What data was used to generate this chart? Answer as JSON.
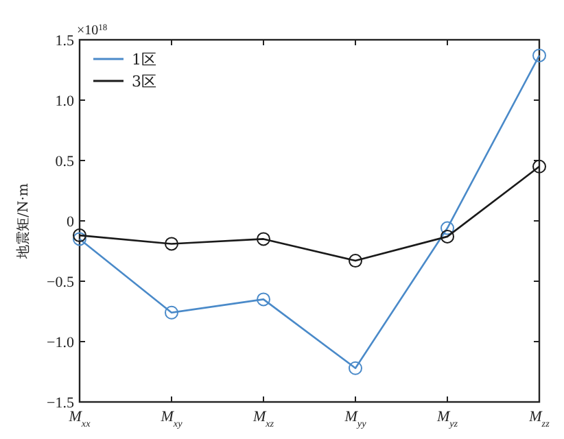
{
  "chart_data": {
    "type": "line",
    "ylabel": "地震矩/N·m",
    "annotations": [
      "×10$^{18}$"
    ],
    "categories": [
      "M$_{xx}$",
      "M$_{xy}$",
      "M$_{xz}$",
      "M$_{yy}$",
      "M$_{yz}$",
      "M$_{zz}$"
    ],
    "series": [
      {
        "name": "1区",
        "color": "#4a8ac9",
        "values": [
          -0.15,
          -0.76,
          -0.65,
          -1.22,
          -0.06,
          1.37
        ]
      },
      {
        "name": "3区",
        "color": "#1a1a1a",
        "values": [
          -0.12,
          -0.19,
          -0.15,
          -0.33,
          -0.13,
          0.45
        ]
      }
    ],
    "ylim": [
      -1.5,
      1.5
    ],
    "yticks": [
      {
        "value": -1.5,
        "label": "−1.5"
      },
      {
        "value": -1.0,
        "label": "−1.0"
      },
      {
        "value": -0.5,
        "label": "−0.5"
      },
      0,
      {
        "value": 0.5,
        "label": "0.5"
      },
      {
        "value": 1.0,
        "label": "1.0"
      },
      {
        "value": 1.5,
        "label": "1.5"
      }
    ],
    "grid": false,
    "legend": "top left",
    "marker": "circle",
    "line_style": "solid"
  }
}
